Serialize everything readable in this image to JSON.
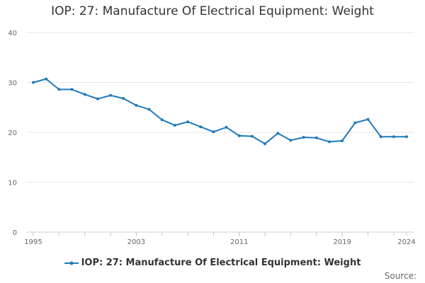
{
  "chart_data": {
    "type": "line",
    "title": "IOP: 27: Manufacture Of Electrical Equipment: Weight",
    "xlabel": "",
    "ylabel": "",
    "x": [
      1995,
      1996,
      1997,
      1998,
      1999,
      2000,
      2001,
      2002,
      2003,
      2004,
      2005,
      2006,
      2007,
      2008,
      2009,
      2010,
      2011,
      2012,
      2013,
      2014,
      2015,
      2016,
      2017,
      2018,
      2019,
      2020,
      2021,
      2022,
      2023,
      2024
    ],
    "x_ticks": [
      1995,
      2003,
      2011,
      2019,
      2024
    ],
    "x_tick_labels": [
      "1995",
      "2003",
      "2011",
      "2019",
      "2024"
    ],
    "xlim": [
      1995,
      2024
    ],
    "ylim": [
      0,
      40
    ],
    "y_ticks": [
      0,
      10,
      20,
      30,
      40
    ],
    "y_tick_labels": [
      "0",
      "10",
      "20",
      "30",
      "40"
    ],
    "grid": true,
    "legend_position": "bottom",
    "series": [
      {
        "name": "IOP: 27: Manufacture Of Electrical Equipment: Weight",
        "color": "#1f7ab8",
        "values": [
          30.0,
          30.7,
          28.6,
          28.6,
          27.6,
          26.7,
          27.4,
          26.8,
          25.4,
          24.6,
          22.5,
          21.4,
          22.1,
          21.1,
          20.1,
          21.0,
          19.3,
          19.2,
          17.7,
          19.8,
          18.4,
          19.0,
          18.9,
          18.1,
          18.3,
          21.9,
          22.6,
          19.1,
          19.1,
          19.1
        ]
      }
    ]
  },
  "footer": {
    "source_label": "Source:"
  }
}
